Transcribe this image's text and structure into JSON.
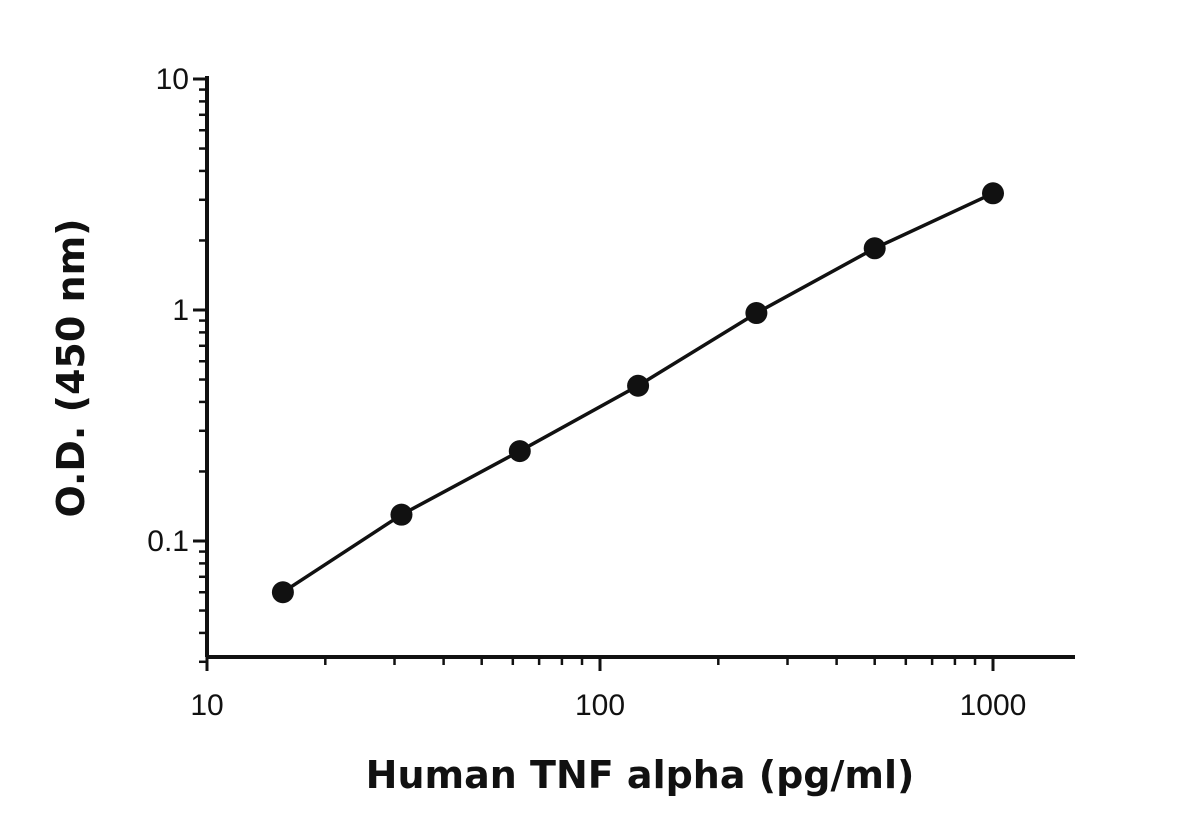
{
  "chart_data": {
    "type": "line",
    "xlabel": "Human TNF alpha (pg/ml)",
    "ylabel": "O.D. (450 nm)",
    "x_scale": "log",
    "y_scale": "log",
    "xlim": [
      10,
      1600
    ],
    "ylim": [
      0.03,
      10
    ],
    "x_ticks": [
      10,
      100,
      1000
    ],
    "x_tick_labels": [
      "10",
      "100",
      "1000"
    ],
    "y_ticks": [
      0.1,
      1,
      10
    ],
    "y_tick_labels": [
      "0.1",
      "1",
      "10"
    ],
    "grid": false,
    "series": [
      {
        "x": [
          15.6,
          31.25,
          62.5,
          125,
          250,
          500,
          1000
        ],
        "y": [
          0.06,
          0.13,
          0.245,
          0.47,
          0.97,
          1.85,
          3.2
        ]
      }
    ],
    "colors": {
      "line": "#111111",
      "marker": "#111111"
    }
  }
}
